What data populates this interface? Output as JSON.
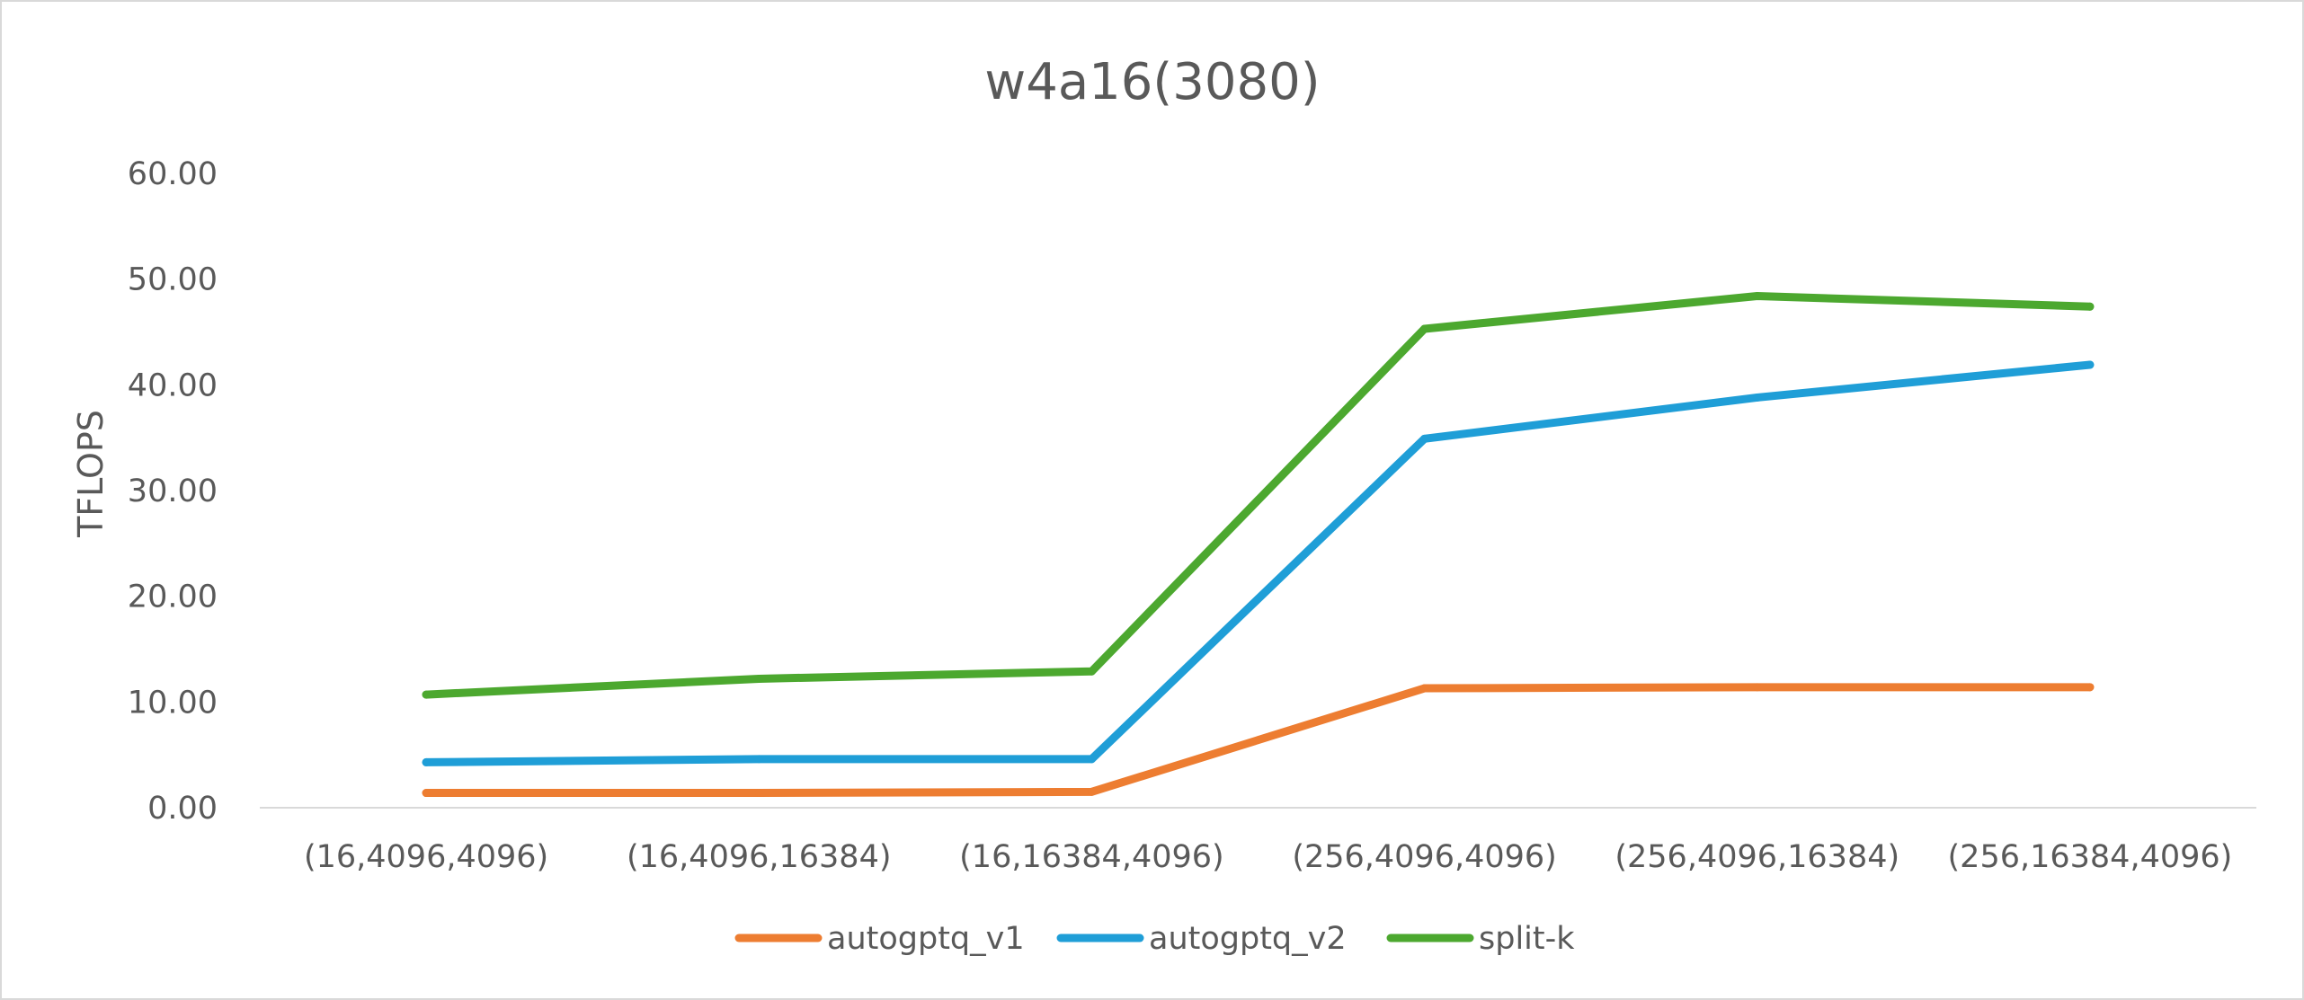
{
  "chart_data": {
    "type": "line",
    "title": "w4a16(3080)",
    "xlabel": "",
    "ylabel": "TFLOPS",
    "categories": [
      "(16,4096,4096)",
      "(16,4096,16384)",
      "(16,16384,4096)",
      "(256,4096,4096)",
      "(256,4096,16384)",
      "(256,16384,4096)"
    ],
    "y_ticks": [
      "0.00",
      "10.00",
      "20.00",
      "30.00",
      "40.00",
      "50.00",
      "60.00"
    ],
    "ylim": [
      0,
      60
    ],
    "grid": false,
    "legend_position": "bottom",
    "series": [
      {
        "name": "autogptq_v1",
        "color": "#ed7d31",
        "values": [
          1.4,
          1.4,
          1.5,
          11.3,
          11.4,
          11.4
        ]
      },
      {
        "name": "autogptq_v2",
        "color": "#1f9ed7",
        "values": [
          4.3,
          4.6,
          4.6,
          34.9,
          38.8,
          41.9
        ]
      },
      {
        "name": "split-k",
        "color": "#4ca82f",
        "values": [
          10.7,
          12.2,
          12.9,
          45.3,
          48.4,
          47.4
        ]
      }
    ]
  }
}
